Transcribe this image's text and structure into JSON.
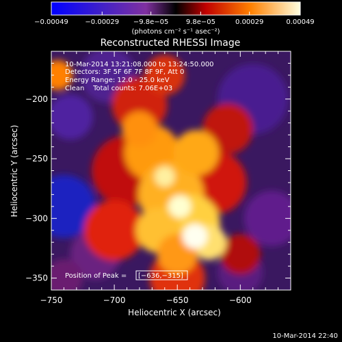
{
  "chart_data": {
    "type": "heatmap",
    "title": "Reconstructed RHESSI Image",
    "xlabel": "Heliocentric X (arcsec)",
    "ylabel": "Heliocentric Y (arcsec)",
    "xlim": [
      -750,
      -560
    ],
    "ylim": [
      -360,
      -160
    ],
    "x_ticks": [
      -750,
      -700,
      -650,
      -600
    ],
    "x_tick_labels": [
      "−750",
      "−700",
      "−650",
      "−600"
    ],
    "y_ticks": [
      -200,
      -250,
      -300,
      -350
    ],
    "y_tick_labels": [
      "−200",
      "−250",
      "−300",
      "−350"
    ],
    "colorbar": {
      "ticks": [
        -0.00049,
        -0.00029,
        -9.8e-05,
        9.8e-05,
        0.00029,
        0.00049
      ],
      "tick_labels": [
        "−0.00049",
        "−0.00029",
        "−9.8e−05",
        "9.8e−05",
        "0.00029",
        "0.00049"
      ],
      "unit_label": "(photons cm⁻² s⁻¹ asec⁻²)",
      "range": [
        -0.00049,
        0.00049
      ]
    },
    "annotations": [
      "10-Mar-2014 13:21:08.000 to 13:24:50.000",
      "Detectors: 3F 5F 6F 7F 8F 9F, Att 0",
      "Energy Range: 12.0 - 25.0 keV",
      "Clean    Total counts: 7.06E+03"
    ],
    "peak_label": "Position of Peak = ",
    "peak_value": "[−636,−315]",
    "peak_xy": [
      -636,
      -315
    ],
    "footer_timestamp": "10-Mar-2014 22:40",
    "grid": false
  }
}
